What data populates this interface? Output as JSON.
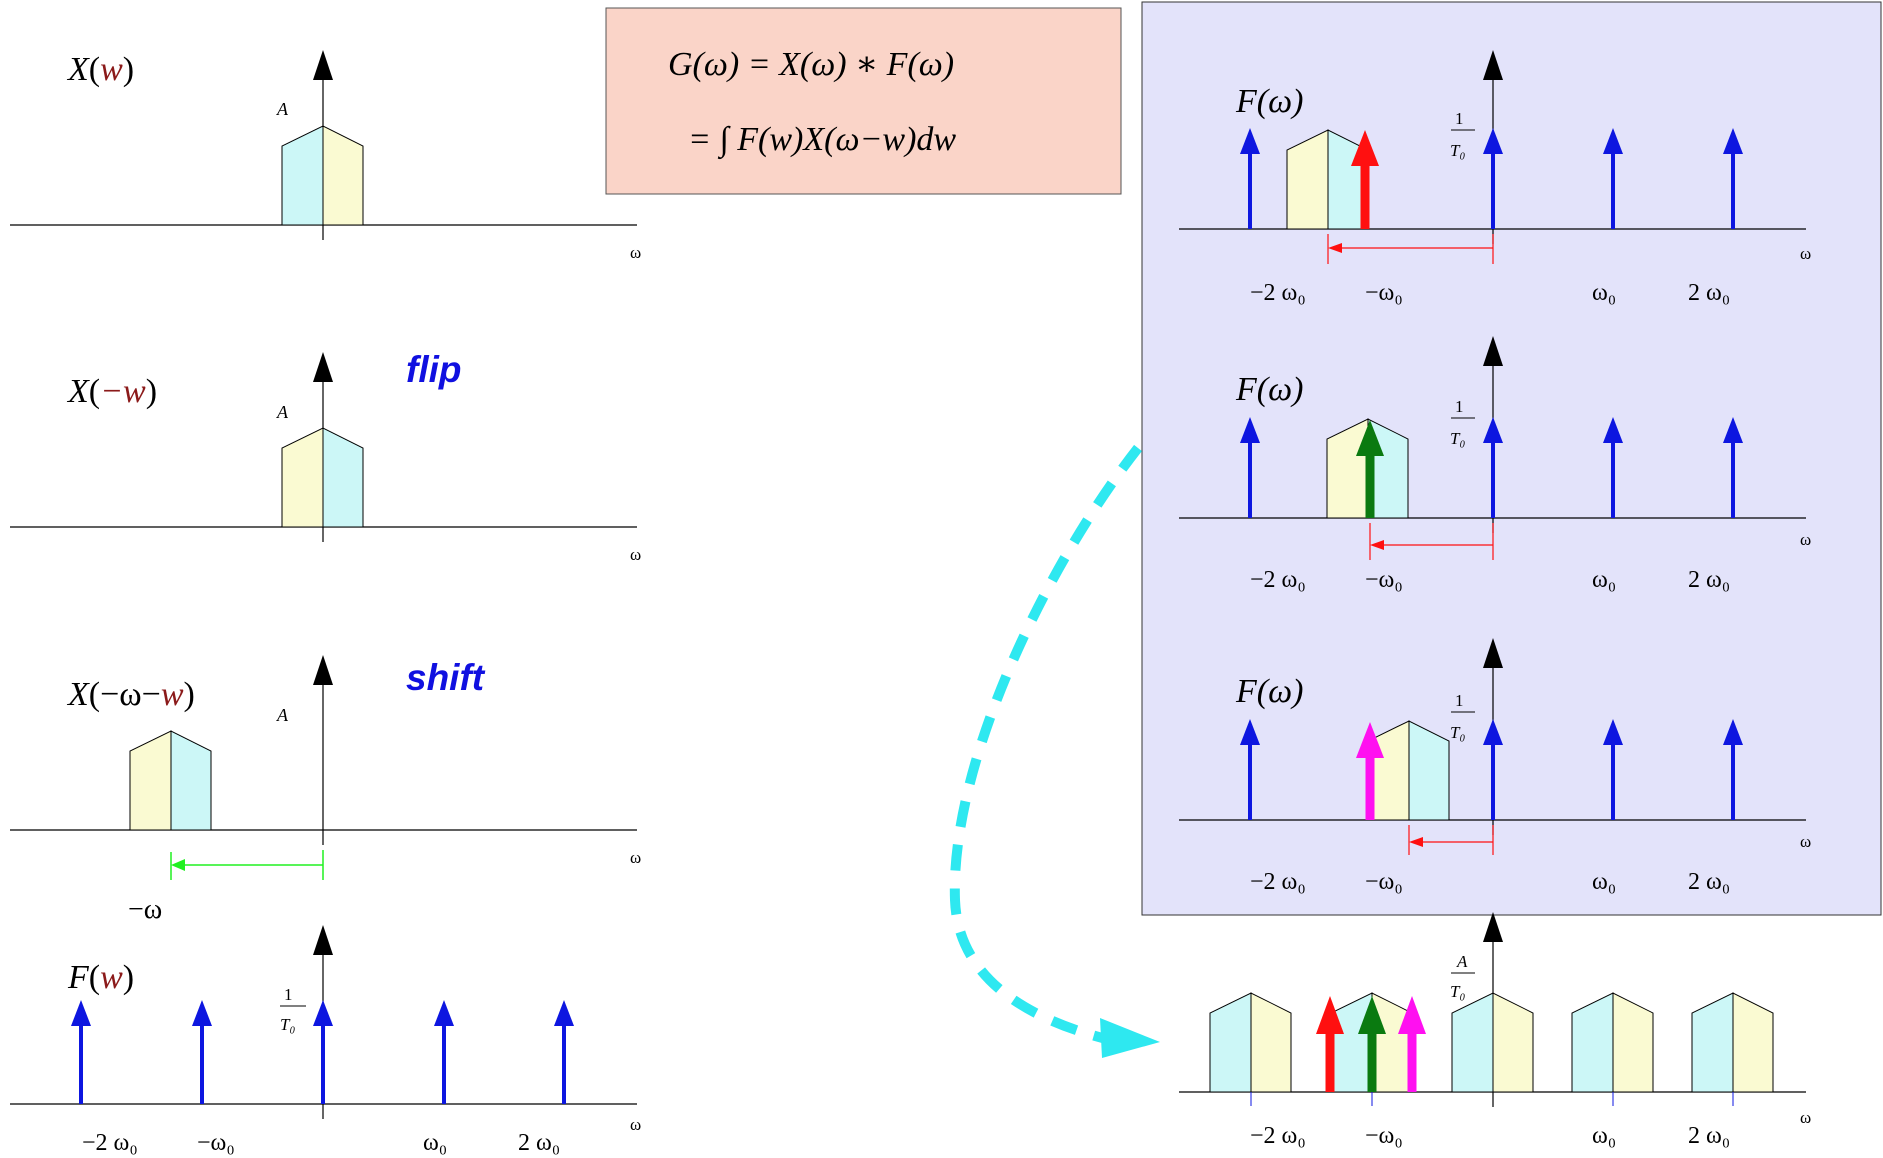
{
  "colors": {
    "impulse": "#0d16e0",
    "cyan": "#ccf7f7",
    "yellow": "#fafad2",
    "formula_bg": "#fad4c8",
    "panel_bg": "#e3e3fa",
    "dash": "#2ee8f0",
    "red": "#ff1010",
    "green": "#0a7a10",
    "magenta": "#ff10f0",
    "shift_green": "#20f020"
  },
  "formula": {
    "line1": "G(ω)  =  X(ω)  ∗  F(ω)",
    "line2": "=  ∫ F(w)X(ω−w)dw"
  },
  "plots": {
    "x_of_w": {
      "label_main": "X",
      "label_arg": "w",
      "amplitude": "A",
      "axis": "ω"
    },
    "x_of_neg_w": {
      "label_main": "X",
      "label_arg": "−w",
      "amplitude": "A",
      "axis": "ω",
      "note": "flip"
    },
    "x_shifted": {
      "label_main": "X",
      "label_arg1": "−ω−",
      "label_arg2": "w",
      "amplitude": "A",
      "axis": "ω",
      "note": "shift",
      "shift_label": "−ω"
    },
    "f_of_w": {
      "label_main": "F",
      "label_arg": "w",
      "amplitude_num": "1",
      "amplitude_den": "T₀",
      "axis": "ω"
    }
  },
  "ticks": {
    "m2": "−2 ω₀",
    "m1": "−ω₀",
    "p1": "ω₀",
    "p2": "2 ω₀"
  },
  "panel": {
    "label": "F(ω)",
    "amplitude_num": "1",
    "amplitude_den": "T₀",
    "axis": "ω"
  },
  "result": {
    "amplitude_num": "A",
    "amplitude_den": "T₀",
    "axis": "ω"
  }
}
